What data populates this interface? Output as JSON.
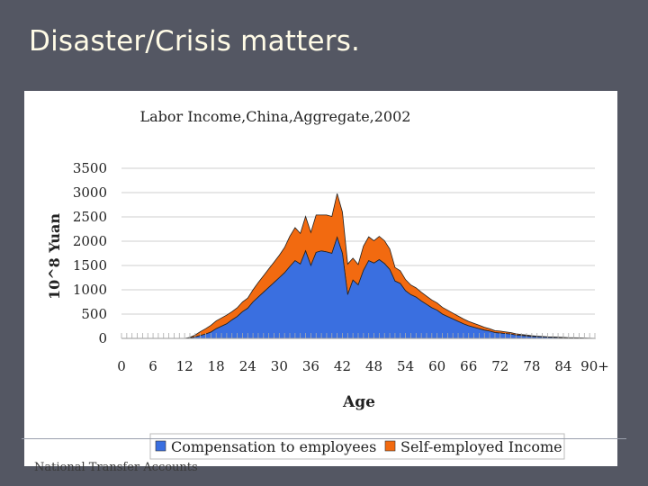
{
  "slide": {
    "title": "Disaster/Crisis matters.",
    "footer": "National Transfer Accounts"
  },
  "colors": {
    "background": "#545763",
    "compensation": "#3a6fe0",
    "self_employed": "#f26a10"
  },
  "chart_data": {
    "type": "area",
    "stacked": true,
    "title": "Labor Income,China,Aggregate,2002",
    "xlabel": "Age",
    "ylabel": "10^8 Yuan",
    "ylim": [
      0,
      3500
    ],
    "xlim": [
      0,
      90
    ],
    "yticks": [
      "0",
      "500",
      "1000",
      "1500",
      "2000",
      "2500",
      "3000",
      "3500"
    ],
    "xticks": [
      "0",
      "6",
      "12",
      "18",
      "24",
      "30",
      "36",
      "42",
      "48",
      "54",
      "60",
      "66",
      "72",
      "78",
      "84",
      "90+"
    ],
    "grid": true,
    "legend_position": "bottom",
    "x": [
      0,
      12,
      13,
      14,
      15,
      16,
      17,
      18,
      19,
      20,
      21,
      22,
      23,
      24,
      25,
      26,
      27,
      28,
      29,
      30,
      31,
      32,
      33,
      34,
      35,
      36,
      37,
      38,
      39,
      40,
      41,
      42,
      43,
      44,
      45,
      46,
      47,
      48,
      49,
      50,
      51,
      52,
      53,
      54,
      55,
      56,
      57,
      58,
      59,
      60,
      61,
      62,
      63,
      64,
      65,
      66,
      67,
      68,
      69,
      70,
      71,
      72,
      73,
      74,
      75,
      76,
      77,
      78,
      79,
      80,
      81,
      82,
      83,
      84,
      85,
      86,
      87,
      88,
      89,
      90
    ],
    "series": [
      {
        "name": "Compensation to employees",
        "values": [
          0,
          0,
          10,
          30,
          60,
          90,
          130,
          200,
          250,
          300,
          380,
          450,
          550,
          620,
          750,
          850,
          950,
          1050,
          1150,
          1250,
          1350,
          1480,
          1600,
          1530,
          1800,
          1500,
          1770,
          1800,
          1780,
          1750,
          2080,
          1750,
          900,
          1200,
          1100,
          1400,
          1600,
          1550,
          1620,
          1540,
          1420,
          1180,
          1130,
          980,
          900,
          850,
          770,
          700,
          630,
          580,
          500,
          450,
          400,
          350,
          300,
          260,
          230,
          200,
          170,
          150,
          120,
          110,
          100,
          90,
          70,
          60,
          50,
          40,
          35,
          30,
          25,
          22,
          20,
          15,
          10,
          10,
          8,
          5,
          3,
          2
        ]
      },
      {
        "name": "Self-employed Income",
        "values": [
          0,
          0,
          10,
          40,
          80,
          110,
          140,
          160,
          170,
          180,
          170,
          180,
          200,
          210,
          250,
          300,
          340,
          380,
          420,
          460,
          520,
          620,
          680,
          630,
          710,
          680,
          770,
          740,
          760,
          760,
          900,
          850,
          630,
          450,
          420,
          500,
          490,
          460,
          480,
          470,
          420,
          280,
          260,
          230,
          200,
          190,
          180,
          170,
          160,
          150,
          140,
          130,
          120,
          110,
          100,
          90,
          80,
          70,
          60,
          50,
          40,
          40,
          35,
          30,
          25,
          20,
          18,
          15,
          12,
          10,
          8,
          7,
          6,
          5,
          4,
          3,
          3,
          2,
          2,
          1
        ]
      }
    ]
  }
}
